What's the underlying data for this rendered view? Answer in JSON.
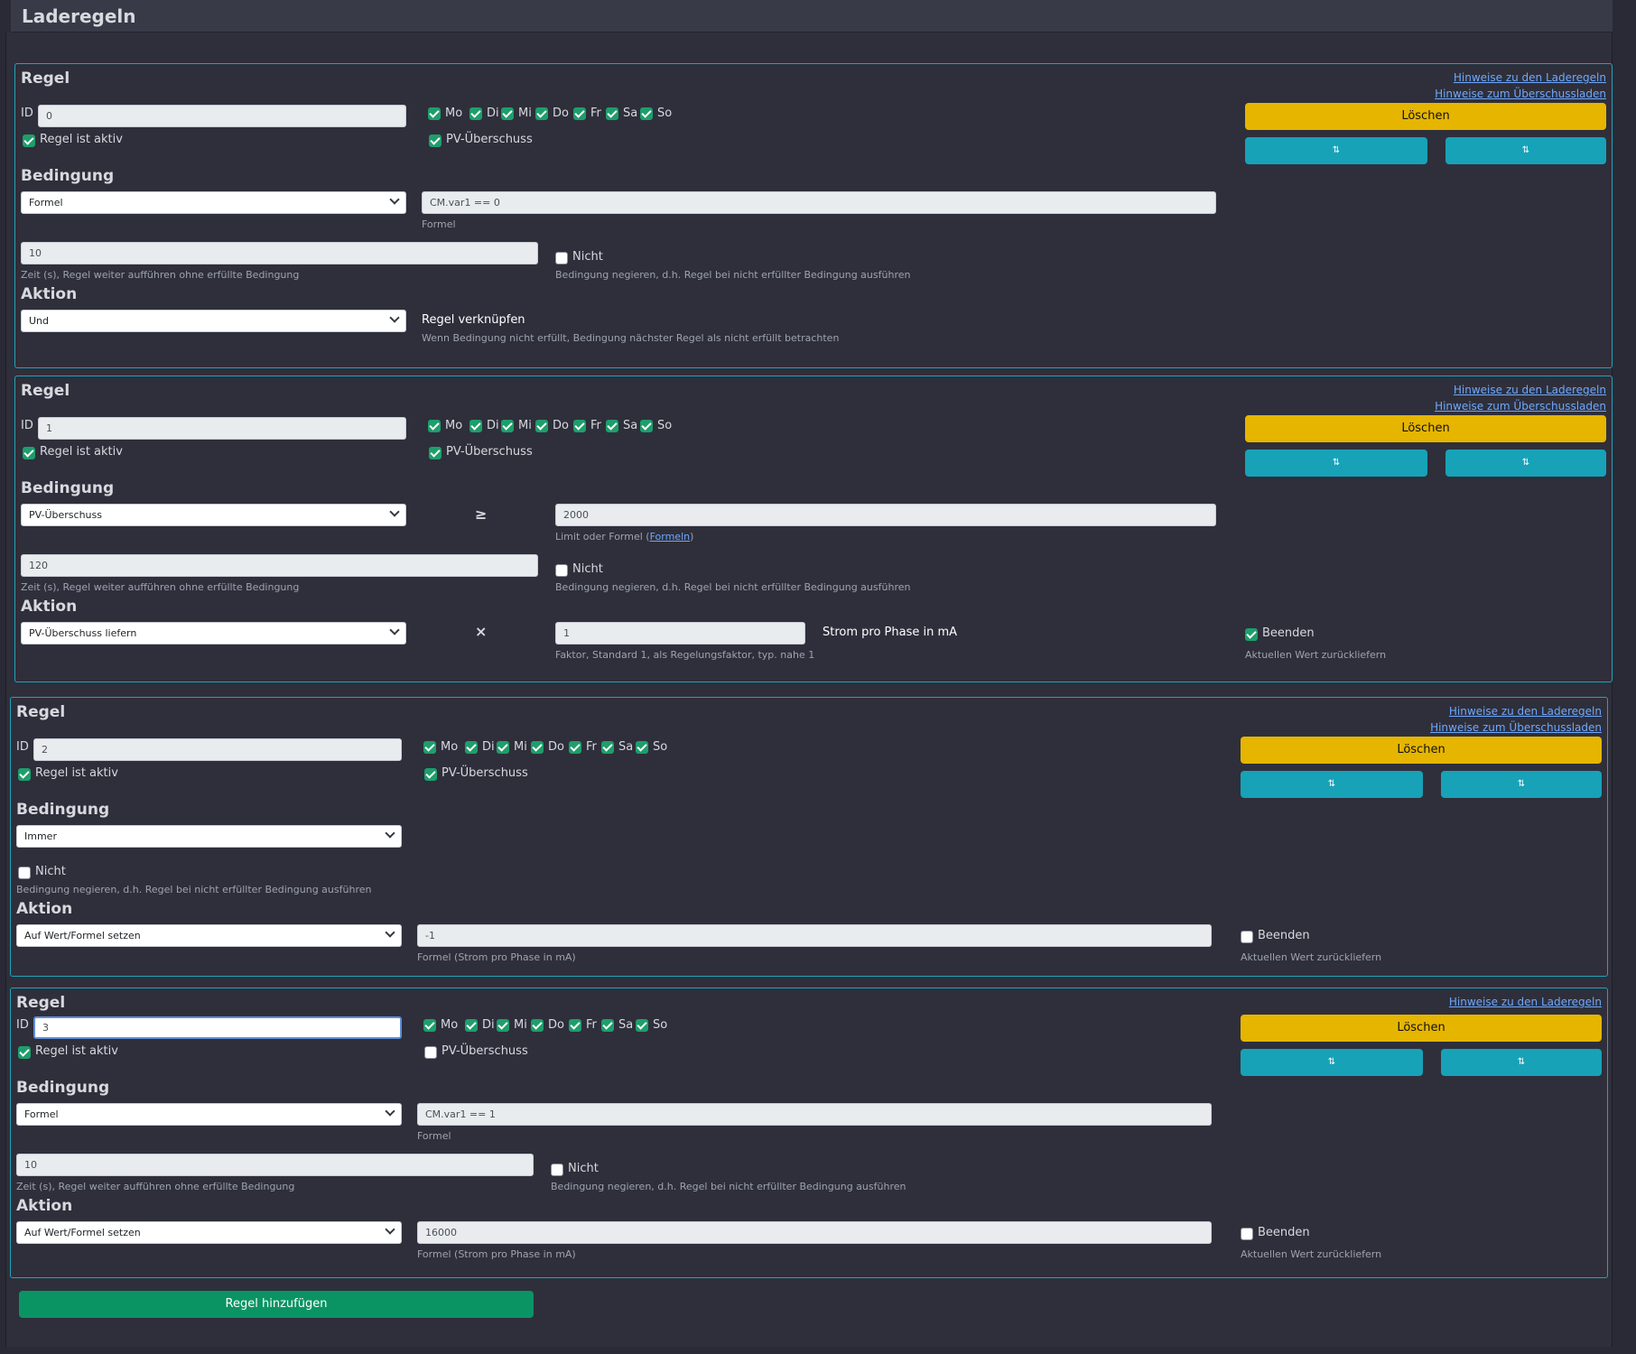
{
  "page": {
    "title": "Laderegeln"
  },
  "common": {
    "rule_heading": "Regel",
    "id_label": "ID",
    "active_label": "Regel ist aktiv",
    "pv_label": "PV-Überschuss",
    "days": [
      "Mo",
      "Di",
      "Mi",
      "Do",
      "Fr",
      "Sa",
      "So"
    ],
    "link_rules": "Hinweise zu den Laderegeln",
    "link_surplus": "Hinweise zum Überschussladen",
    "delete_label": "Löschen",
    "move_up_icon": "move-up-icon",
    "move_down_icon": "move-down-icon",
    "condition_heading": "Bedingung",
    "action_heading": "Aktion",
    "formula_help": "Formel",
    "time_help": "Zeit (s), Regel weiter aufführen ohne erfüllte Bedingung",
    "not_label": "Nicht",
    "not_help": "Bedingung negieren, d.h. Regel bei nicht erfüllter Bedingung ausführen",
    "end_label": "Beenden",
    "end_help": "Aktuellen Wert zurückliefern",
    "formula_current_help": "Formel (Strom pro Phase in mA)"
  },
  "rule0": {
    "id": "0",
    "active": true,
    "pv": true,
    "condition": "Formel",
    "formula": "CM.var1 == 0",
    "time": "10",
    "not": false,
    "action": "Und",
    "link_title": "Regel verknüpfen",
    "link_help": "Wenn Bedingung nicht erfüllt, Bedingung nächster Regel als nicht erfüllt betrachten"
  },
  "rule1": {
    "id": "1",
    "active": true,
    "pv": true,
    "condition": "PV-Überschuss",
    "operator": "≥",
    "limit": "2000",
    "limit_help": "Limit oder Formel (",
    "limit_link": "Formeln",
    "limit_help_end": ")",
    "time": "120",
    "not": false,
    "action": "PV-Überschuss liefern",
    "action_operator": "×",
    "factor": "1",
    "factor_unit": "Strom pro Phase in mA",
    "factor_help": "Faktor, Standard 1, als Regelungsfaktor, typ. nahe 1",
    "end": true
  },
  "rule2": {
    "id": "2",
    "active": true,
    "pv": true,
    "condition": "Immer",
    "not": false,
    "action": "Auf Wert/Formel setzen",
    "value": "-1",
    "end": false
  },
  "rule3": {
    "id": "3",
    "active": true,
    "pv": false,
    "condition": "Formel",
    "formula": "CM.var1 == 1",
    "time": "10",
    "not": false,
    "action": "Auf Wert/Formel setzen",
    "value": "16000",
    "end": false
  },
  "add_button": "Regel hinzufügen"
}
